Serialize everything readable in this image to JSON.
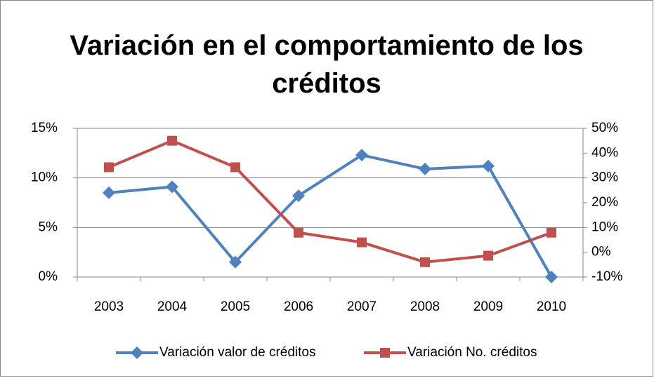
{
  "chart_data": {
    "type": "line",
    "title": "Variación en el comportamiento de los créditos",
    "categories": [
      "2003",
      "2004",
      "2005",
      "2006",
      "2007",
      "2008",
      "2009",
      "2010"
    ],
    "series": [
      {
        "name": "Variación valor de créditos",
        "color": "#4f81bd",
        "marker": "diamond",
        "values": [
          8.5,
          9.1,
          1.5,
          8.2,
          12.3,
          10.9,
          11.2,
          0
        ]
      },
      {
        "name": "Variación No. créditos",
        "color": "#c0504d",
        "marker": "square",
        "axis": "y2",
        "values": [
          34.3,
          45,
          34.3,
          7.9,
          4,
          -4,
          -1.4,
          7.9
        ]
      }
    ],
    "ylim": [
      0,
      15
    ],
    "yticks": [
      {
        "value": 0,
        "label": "0%"
      },
      {
        "value": 5,
        "label": "5%"
      },
      {
        "value": 10,
        "label": "10%"
      },
      {
        "value": 15,
        "label": "15%"
      }
    ],
    "y2lim": [
      -10,
      50
    ],
    "y2ticks": [
      {
        "value": -10,
        "label": "-10%"
      },
      {
        "value": 0,
        "label": "0%"
      },
      {
        "value": 10,
        "label": "10%"
      },
      {
        "value": 20,
        "label": "20%"
      },
      {
        "value": 30,
        "label": "30%"
      },
      {
        "value": 40,
        "label": "40%"
      },
      {
        "value": 50,
        "label": "50%"
      }
    ],
    "grid": true,
    "legend": "bottom"
  }
}
